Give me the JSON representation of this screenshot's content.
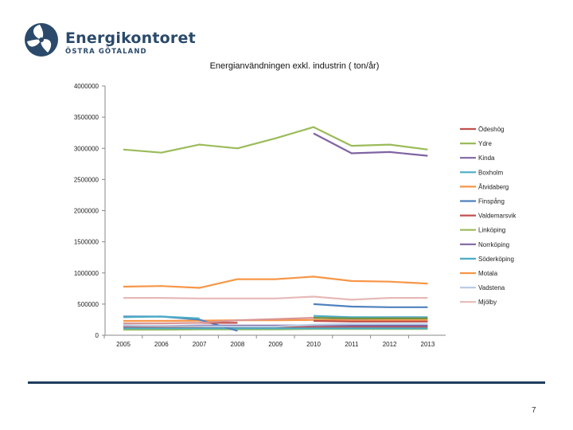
{
  "header": {
    "brand": "Energikontoret",
    "region": "ÖSTRA GÖTALAND",
    "logo_icon": "fan-logo-icon",
    "brand_color": "#2b4a6b"
  },
  "footer": {
    "page_number": "7"
  },
  "chart_data": {
    "type": "line",
    "title": "Energianvändningen exkl. industrin ( ton/år)",
    "xlabel": "",
    "ylabel": "",
    "categories": [
      "2005",
      "2006",
      "2007",
      "2008",
      "2009",
      "2010",
      "2011",
      "2012",
      "2013"
    ],
    "ylim": [
      0,
      4000000
    ],
    "yticks": [
      {
        "value": 0,
        "label": "0"
      },
      {
        "value": 500000,
        "label": "500000"
      },
      {
        "value": 1000000,
        "label": "1000000"
      },
      {
        "value": 1500000,
        "label": "1500000"
      },
      {
        "value": 2000000,
        "label": "2000000"
      },
      {
        "value": 2500000,
        "label": "2500000"
      },
      {
        "value": 3000000,
        "label": "3000000"
      },
      {
        "value": 3500000,
        "label": "3500000"
      },
      {
        "value": 4000000,
        "label": "4000000"
      }
    ],
    "grid": false,
    "legend": "right",
    "series": [
      {
        "name": "Ödeshög",
        "color": "#c0504d",
        "values": [
          120000,
          120000,
          125000,
          125000,
          125000,
          130000,
          130000,
          130000,
          130000
        ]
      },
      {
        "name": "Ydre",
        "color": "#9bbb59",
        "values": [
          90000,
          90000,
          95000,
          95000,
          95000,
          100000,
          100000,
          100000,
          100000
        ]
      },
      {
        "name": "Kinda",
        "color": "#8064a2",
        "values": [
          150000,
          150000,
          155000,
          155000,
          155000,
          160000,
          155000,
          155000,
          155000
        ]
      },
      {
        "name": "Boxholm",
        "color": "#4bacc6",
        "values": [
          110000,
          110000,
          110000,
          110000,
          110000,
          110000,
          110000,
          110000,
          110000
        ]
      },
      {
        "name": "Åtvidaberg",
        "color": "#f79646",
        "values": [
          230000,
          230000,
          235000,
          240000,
          240000,
          245000,
          240000,
          240000,
          240000
        ]
      },
      {
        "name": "Finspång",
        "color": "#4f81bd",
        "values": [
          300000,
          300000,
          250000,
          70000,
          null,
          null,
          null,
          null,
          null
        ]
      },
      {
        "name": "Valdemarsvik",
        "color": "#c0504d",
        "values": [
          null,
          null,
          200000,
          200000,
          null,
          230000,
          220000,
          220000,
          220000
        ]
      },
      {
        "name": "Linköping",
        "color": "#9bbb59",
        "values": [
          2980000,
          2930000,
          3060000,
          3000000,
          3160000,
          3340000,
          3040000,
          3060000,
          2980000
        ]
      },
      {
        "name": "Norrköping",
        "color": "#8064a2",
        "values": [
          null,
          null,
          null,
          null,
          null,
          3240000,
          2920000,
          2940000,
          2880000
        ]
      },
      {
        "name": "Söderköping",
        "color": "#4bacc6",
        "values": [
          290000,
          300000,
          270000,
          null,
          null,
          310000,
          290000,
          290000,
          290000
        ]
      },
      {
        "name": "Motala",
        "color": "#f79646",
        "values": [
          780000,
          790000,
          760000,
          900000,
          900000,
          940000,
          870000,
          860000,
          830000
        ]
      },
      {
        "name": "Vadstena",
        "color": "#b9cde5",
        "values": [
          160000,
          150000,
          145000,
          140000,
          140000,
          170000,
          180000,
          180000,
          180000
        ]
      },
      {
        "name": "Mjölby",
        "color": "#e6b9b8",
        "values": [
          600000,
          600000,
          590000,
          590000,
          590000,
          620000,
          570000,
          600000,
          600000
        ]
      },
      {
        "name": "Linköping (2)",
        "legend": false,
        "color": "#4f81bd",
        "values": [
          null,
          null,
          null,
          null,
          null,
          500000,
          460000,
          450000,
          450000
        ]
      },
      {
        "name": "Finspång (2)",
        "legend": false,
        "color": "#d99694",
        "values": [
          190000,
          190000,
          200000,
          240000,
          260000,
          280000,
          260000,
          270000,
          270000
        ]
      },
      {
        "name": "Ydre (2)",
        "legend": false,
        "color": "#76923c",
        "values": [
          null,
          null,
          null,
          null,
          null,
          280000,
          270000,
          270000,
          270000
        ]
      }
    ]
  }
}
